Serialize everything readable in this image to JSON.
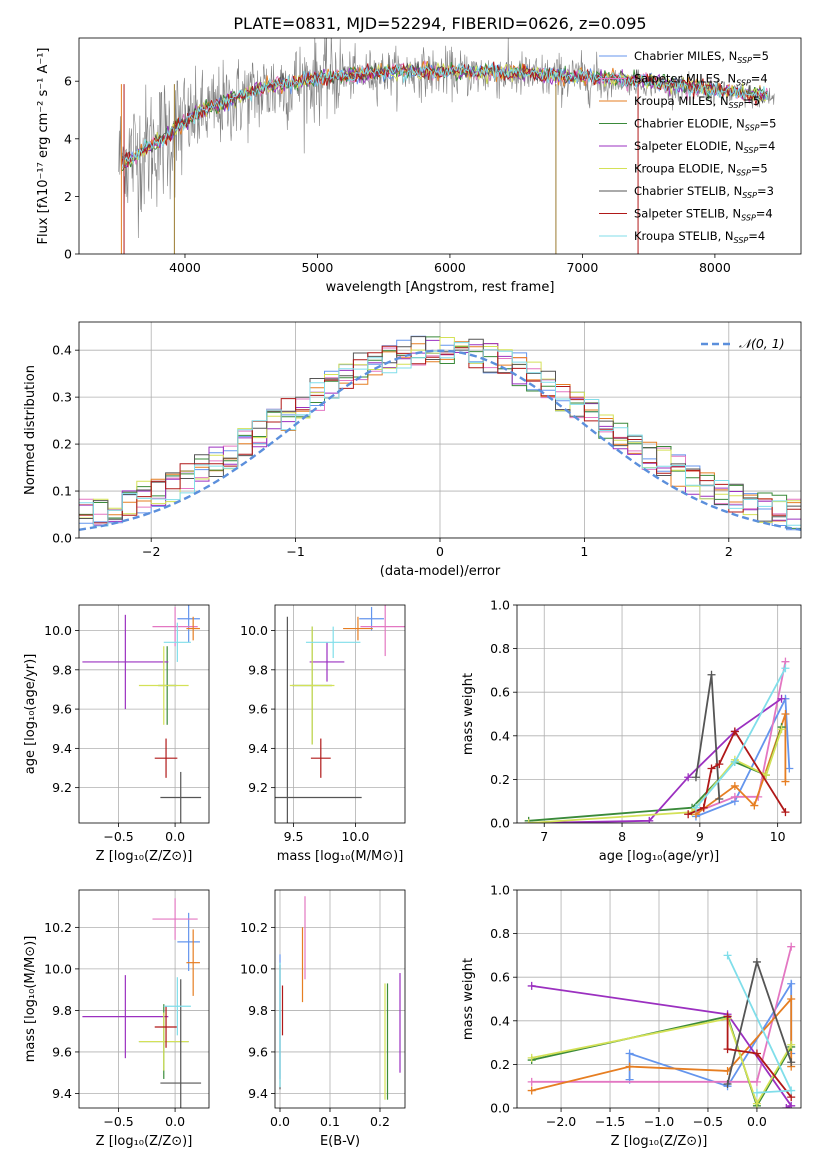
{
  "title": "PLATE=0831, MJD=52294, FIBERID=0626, z=0.095",
  "colors": {
    "Chabrier MILES": "#6495ed",
    "Salpeter MILES": "#e377c2",
    "Kroupa MILES": "#e67e22",
    "Chabrier ELODIE": "#3a8a3a",
    "Salpeter ELODIE": "#9b30c0",
    "Kroupa ELODIE": "#d4e157",
    "Chabrier STELIB": "#555555",
    "Salpeter STELIB": "#b01818",
    "Kroupa STELIB": "#80deea",
    "gaussian": "#5b8fdc"
  },
  "chart_data": [
    {
      "id": "spectrum",
      "type": "line",
      "xlabel": "wavelength [Angstrom, rest frame]",
      "ylabel": "Flux [fλ10⁻¹⁷ erg cm⁻² s⁻¹ A⁻¹]",
      "xlim": [
        3200,
        8650
      ],
      "ylim": [
        0,
        7.5
      ],
      "xticks": [
        4000,
        5000,
        6000,
        7000,
        8000
      ],
      "yticks": [
        0,
        2,
        4,
        6
      ],
      "grid": false,
      "legend_position": "right",
      "legend": [
        {
          "name": "Chabrier MILES",
          "label": "Chabrier MILES, N",
          "sub": "SSP",
          "suffix": "=5"
        },
        {
          "name": "Salpeter MILES",
          "label": "Salpeter MILES, N",
          "sub": "SSP",
          "suffix": "=4"
        },
        {
          "name": "Kroupa MILES",
          "label": "Kroupa MILES, N",
          "sub": "SSP",
          "suffix": "=5"
        },
        {
          "name": "Chabrier ELODIE",
          "label": "Chabrier ELODIE, N",
          "sub": "SSP",
          "suffix": "=5"
        },
        {
          "name": "Salpeter ELODIE",
          "label": "Salpeter ELODIE, N",
          "sub": "SSP",
          "suffix": "=4"
        },
        {
          "name": "Kroupa ELODIE",
          "label": "Kroupa ELODIE, N",
          "sub": "SSP",
          "suffix": "=5"
        },
        {
          "name": "Chabrier STELIB",
          "label": "Chabrier STELIB, N",
          "sub": "SSP",
          "suffix": "=3"
        },
        {
          "name": "Salpeter STELIB",
          "label": "Salpeter STELIB, N",
          "sub": "SSP",
          "suffix": "=4"
        },
        {
          "name": "Kroupa STELIB",
          "label": "Kroupa STELIB, N",
          "sub": "SSP",
          "suffix": "=4"
        }
      ],
      "data_series": {
        "name": "observed spectrum",
        "x_range": [
          3500,
          8450
        ],
        "continuum": [
          [
            3500,
            3.2
          ],
          [
            3700,
            3.6
          ],
          [
            3900,
            4.2
          ],
          [
            4100,
            4.8
          ],
          [
            4400,
            5.4
          ],
          [
            4700,
            5.8
          ],
          [
            5000,
            6.1
          ],
          [
            5500,
            6.3
          ],
          [
            6000,
            6.3
          ],
          [
            6500,
            6.2
          ],
          [
            7000,
            6.1
          ],
          [
            7500,
            5.9
          ],
          [
            8000,
            5.6
          ],
          [
            8450,
            5.4
          ]
        ]
      },
      "model_continuum": [
        [
          3520,
          3.1
        ],
        [
          3650,
          3.5
        ],
        [
          3800,
          3.9
        ],
        [
          3950,
          4.4
        ],
        [
          4100,
          4.9
        ],
        [
          4300,
          5.3
        ],
        [
          4600,
          5.8
        ],
        [
          5000,
          6.1
        ],
        [
          5500,
          6.35
        ],
        [
          6000,
          6.35
        ],
        [
          6500,
          6.3
        ],
        [
          7000,
          6.15
        ],
        [
          7500,
          6.0
        ],
        [
          8000,
          5.7
        ],
        [
          8400,
          5.5
        ]
      ]
    },
    {
      "id": "residual-histogram",
      "type": "histogram",
      "xlabel": "(data-model)/error",
      "ylabel": "Normed distribution",
      "xlim": [
        -2.5,
        2.5
      ],
      "ylim": [
        0,
        0.46
      ],
      "xticks": [
        -2,
        -1,
        0,
        1,
        2
      ],
      "yticks": [
        0.0,
        0.1,
        0.2,
        0.3,
        0.4
      ],
      "grid": true,
      "bin_width": 0.1,
      "legend": "𝒩(0, 1)",
      "reference": {
        "type": "gaussian",
        "mean": 0,
        "sigma": 1
      }
    },
    {
      "id": "age-vs-Z",
      "type": "errorbar",
      "xlabel": "Z [log₁₀(Z/Z⊙)]",
      "ylabel": "age  [log₁₀(age/yr)]",
      "xlim": [
        -0.85,
        0.3
      ],
      "ylim": [
        9.02,
        10.13
      ],
      "xticks": [
        -0.5,
        0.0
      ],
      "yticks": [
        9.2,
        9.4,
        9.6,
        9.8,
        10.0
      ],
      "grid": true,
      "points": [
        {
          "name": "Chabrier MILES",
          "x": 0.12,
          "xerr": 0.1,
          "y": 10.06,
          "yerr": 0.12
        },
        {
          "name": "Salpeter MILES",
          "x": 0.0,
          "xerr": 0.2,
          "y": 10.02,
          "yerr": 0.1
        },
        {
          "name": "Kroupa MILES",
          "x": 0.16,
          "xerr": 0.06,
          "y": 10.01,
          "yerr": 0.06
        },
        {
          "name": "Chabrier ELODIE",
          "x": -0.07,
          "xerr": 0.08,
          "y": 9.72,
          "yerr": 0.2
        },
        {
          "name": "Salpeter ELODIE",
          "x": -0.44,
          "xerr": 0.38,
          "y": 9.84,
          "yerr": 0.24
        },
        {
          "name": "Kroupa ELODIE",
          "x": -0.1,
          "xerr": 0.22,
          "y": 9.72,
          "yerr": 0.2
        },
        {
          "name": "Chabrier STELIB",
          "x": 0.05,
          "xerr": 0.18,
          "y": 9.15,
          "yerr": 0.13
        },
        {
          "name": "Salpeter STELIB",
          "x": -0.08,
          "xerr": 0.1,
          "y": 9.35,
          "yerr": 0.1
        },
        {
          "name": "Kroupa STELIB",
          "x": 0.02,
          "xerr": 0.12,
          "y": 9.94,
          "yerr": 0.1
        }
      ]
    },
    {
      "id": "age-vs-mass",
      "type": "errorbar",
      "xlabel": "mass [log₁₀(M/M⊙)]",
      "ylabel": "",
      "xlim": [
        9.35,
        10.4
      ],
      "ylim": [
        9.02,
        10.13
      ],
      "xticks": [
        9.5,
        10.0
      ],
      "yticks": [
        9.2,
        9.4,
        9.6,
        9.8,
        10.0
      ],
      "grid": true,
      "points": [
        {
          "name": "Chabrier MILES",
          "x": 10.13,
          "xerr": 0.1,
          "y": 10.06,
          "yerr": 0.06
        },
        {
          "name": "Salpeter MILES",
          "x": 10.24,
          "xerr": 0.2,
          "y": 10.02,
          "yerr": 0.15
        },
        {
          "name": "Kroupa MILES",
          "x": 10.02,
          "xerr": 0.12,
          "y": 10.01,
          "yerr": 0.06
        },
        {
          "name": "Chabrier ELODIE",
          "x": 9.65,
          "xerr": 0.16,
          "y": 9.72,
          "yerr": 0.3
        },
        {
          "name": "Salpeter ELODIE",
          "x": 9.77,
          "xerr": 0.14,
          "y": 9.84,
          "yerr": 0.1
        },
        {
          "name": "Kroupa ELODIE",
          "x": 9.65,
          "xerr": 0.18,
          "y": 9.72,
          "yerr": 0.3
        },
        {
          "name": "Chabrier STELIB",
          "x": 9.45,
          "xerr": 0.6,
          "y": 9.15,
          "yerr": 0.92
        },
        {
          "name": "Salpeter STELIB",
          "x": 9.72,
          "xerr": 0.08,
          "y": 9.35,
          "yerr": 0.1
        },
        {
          "name": "Kroupa STELIB",
          "x": 9.82,
          "xerr": 0.22,
          "y": 9.94,
          "yerr": 0.08
        }
      ]
    },
    {
      "id": "weight-vs-age",
      "type": "line",
      "xlabel": "age  [log₁₀(age/yr)]",
      "ylabel": "mass weight",
      "xlim": [
        6.65,
        10.3
      ],
      "ylim": [
        0.0,
        1.0
      ],
      "xticks": [
        7,
        8,
        9,
        10
      ],
      "yticks": [
        0.0,
        0.2,
        0.4,
        0.6,
        0.8,
        1.0
      ],
      "grid": true,
      "series": [
        {
          "name": "Chabrier MILES",
          "x": [
            8.95,
            9.45,
            10.1,
            10.15
          ],
          "y": [
            0.03,
            0.1,
            0.57,
            0.25
          ]
        },
        {
          "name": "Salpeter MILES",
          "x": [
            8.95,
            9.45,
            9.75,
            10.1
          ],
          "y": [
            0.05,
            0.12,
            0.12,
            0.74
          ]
        },
        {
          "name": "Kroupa MILES",
          "x": [
            8.95,
            9.45,
            9.7,
            10.1,
            10.1
          ],
          "y": [
            0.04,
            0.17,
            0.08,
            0.5,
            0.19
          ]
        },
        {
          "name": "Chabrier ELODIE",
          "x": [
            6.8,
            8.9,
            9.45,
            9.85,
            10.05
          ],
          "y": [
            0.01,
            0.07,
            0.28,
            0.22,
            0.44
          ]
        },
        {
          "name": "Salpeter ELODIE",
          "x": [
            6.8,
            8.35,
            8.85,
            9.45,
            10.05
          ],
          "y": [
            0.0,
            0.01,
            0.21,
            0.42,
            0.57
          ]
        },
        {
          "name": "Kroupa ELODIE",
          "x": [
            6.8,
            8.9,
            9.45,
            9.85,
            10.05
          ],
          "y": [
            0.0,
            0.05,
            0.29,
            0.22,
            0.43
          ]
        },
        {
          "name": "Chabrier STELIB",
          "x": [
            8.95,
            9.15,
            9.25
          ],
          "y": [
            0.21,
            0.68,
            0.11
          ]
        },
        {
          "name": "Salpeter STELIB",
          "x": [
            8.85,
            9.05,
            9.15,
            9.25,
            9.45,
            10.1
          ],
          "y": [
            0.04,
            0.07,
            0.25,
            0.27,
            0.42,
            0.05
          ]
        },
        {
          "name": "Kroupa STELIB",
          "x": [
            8.95,
            9.45,
            10.1
          ],
          "y": [
            0.07,
            0.28,
            0.71
          ]
        }
      ]
    },
    {
      "id": "mass-vs-Z",
      "type": "errorbar",
      "xlabel": "Z [log₁₀(Z/Z⊙)]",
      "ylabel": "mass [log₁₀(M/M⊙)]",
      "xlim": [
        -0.85,
        0.3
      ],
      "ylim": [
        9.33,
        10.38
      ],
      "xticks": [
        -0.5,
        0.0
      ],
      "yticks": [
        9.4,
        9.6,
        9.8,
        10.0,
        10.2
      ],
      "grid": true,
      "points": [
        {
          "name": "Chabrier MILES",
          "x": 0.12,
          "xerr": 0.1,
          "y": 10.13,
          "yerr": 0.14
        },
        {
          "name": "Salpeter MILES",
          "x": 0.0,
          "xerr": 0.2,
          "y": 10.24,
          "yerr": 0.1
        },
        {
          "name": "Kroupa MILES",
          "x": 0.16,
          "xerr": 0.06,
          "y": 10.03,
          "yerr": 0.16
        },
        {
          "name": "Chabrier ELODIE",
          "x": -0.1,
          "xerr": 0.22,
          "y": 9.65,
          "yerr": 0.18
        },
        {
          "name": "Salpeter ELODIE",
          "x": -0.44,
          "xerr": 0.38,
          "y": 9.77,
          "yerr": 0.2
        },
        {
          "name": "Kroupa ELODIE",
          "x": -0.1,
          "xerr": 0.22,
          "y": 9.65,
          "yerr": 0.14
        },
        {
          "name": "Chabrier STELIB",
          "x": 0.05,
          "xerr": 0.18,
          "y": 9.45,
          "yerr": 0.5
        },
        {
          "name": "Salpeter STELIB",
          "x": -0.08,
          "xerr": 0.1,
          "y": 9.72,
          "yerr": 0.1
        },
        {
          "name": "Kroupa STELIB",
          "x": 0.02,
          "xerr": 0.12,
          "y": 9.82,
          "yerr": 0.14
        }
      ]
    },
    {
      "id": "mass-vs-ebv",
      "type": "errorbar",
      "xlabel": "E(B-V)",
      "ylabel": "",
      "xlim": [
        -0.01,
        0.25
      ],
      "ylim": [
        9.33,
        10.38
      ],
      "xticks": [
        0.0,
        0.1,
        0.2
      ],
      "yticks": [
        9.4,
        9.6,
        9.8,
        10.0,
        10.2
      ],
      "grid": true,
      "points": [
        {
          "name": "Chabrier MILES",
          "x": 0.0,
          "xerr": 0,
          "y": 9.77,
          "yerr": 0.3
        },
        {
          "name": "Salpeter MILES",
          "x": 0.05,
          "xerr": 0,
          "y": 10.15,
          "yerr": 0.2
        },
        {
          "name": "Kroupa MILES",
          "x": 0.045,
          "xerr": 0,
          "y": 10.02,
          "yerr": 0.18
        },
        {
          "name": "Chabrier ELODIE",
          "x": 0.215,
          "xerr": 0,
          "y": 9.65,
          "yerr": 0.28
        },
        {
          "name": "Salpeter ELODIE",
          "x": 0.24,
          "xerr": 0,
          "y": 9.74,
          "yerr": 0.24
        },
        {
          "name": "Kroupa ELODIE",
          "x": 0.21,
          "xerr": 0,
          "y": 9.65,
          "yerr": 0.28
        },
        {
          "name": "Chabrier STELIB",
          "x": 0.0,
          "xerr": 0,
          "y": 9.72,
          "yerr": 0.3
        },
        {
          "name": "Salpeter STELIB",
          "x": 0.005,
          "xerr": 0,
          "y": 9.8,
          "yerr": 0.12
        },
        {
          "name": "Kroupa STELIB",
          "x": 0.0,
          "xerr": 0,
          "y": 9.73,
          "yerr": 0.3
        }
      ]
    },
    {
      "id": "weight-vs-Z",
      "type": "line",
      "xlabel": "Z [log₁₀(Z/Z⊙)]",
      "ylabel": "mass weight",
      "xlim": [
        -2.45,
        0.45
      ],
      "ylim": [
        0.0,
        1.0
      ],
      "xticks": [
        -2.0,
        -1.5,
        -1.0,
        -0.5,
        0.0
      ],
      "yticks": [
        0.0,
        0.2,
        0.4,
        0.6,
        0.8,
        1.0
      ],
      "grid": true,
      "series": [
        {
          "name": "Chabrier MILES",
          "x": [
            -1.3,
            -1.3,
            -0.3,
            0.35,
            0.35
          ],
          "y": [
            0.13,
            0.25,
            0.1,
            0.57,
            0.25
          ]
        },
        {
          "name": "Salpeter MILES",
          "x": [
            -2.3,
            0.0,
            0.35
          ],
          "y": [
            0.12,
            0.12,
            0.74
          ]
        },
        {
          "name": "Kroupa MILES",
          "x": [
            -2.3,
            -1.3,
            -0.3,
            0.35,
            0.35
          ],
          "y": [
            0.08,
            0.19,
            0.17,
            0.5,
            0.19
          ]
        },
        {
          "name": "Chabrier ELODIE",
          "x": [
            -2.3,
            -0.3,
            0.0,
            0.35
          ],
          "y": [
            0.22,
            0.42,
            0.01,
            0.28
          ]
        },
        {
          "name": "Salpeter ELODIE",
          "x": [
            -2.3,
            -0.3,
            0.35,
            0.3
          ],
          "y": [
            0.56,
            0.43,
            0.01,
            0.0
          ]
        },
        {
          "name": "Kroupa ELODIE",
          "x": [
            -2.3,
            -0.3,
            0.0,
            0.35
          ],
          "y": [
            0.23,
            0.41,
            0.02,
            0.29
          ]
        },
        {
          "name": "Chabrier STELIB",
          "x": [
            -0.3,
            0.0,
            0.35
          ],
          "y": [
            0.11,
            0.67,
            0.21
          ]
        },
        {
          "name": "Salpeter STELIB",
          "x": [
            -0.3,
            -0.3,
            0.0,
            0.35
          ],
          "y": [
            0.42,
            0.27,
            0.25,
            0.05
          ]
        },
        {
          "name": "Kroupa STELIB",
          "x": [
            -0.3,
            0.35,
            0.0
          ],
          "y": [
            0.7,
            0.08,
            0.07
          ]
        }
      ]
    }
  ]
}
